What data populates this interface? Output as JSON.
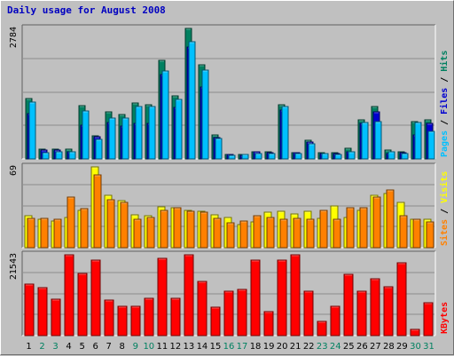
{
  "colors": {
    "background": "#c0c0c0",
    "grid": "#8c8c8c",
    "title": "#0000c0",
    "hits": "#008060",
    "files": "#0000d0",
    "pages": "#00c0ff",
    "visits": "#ffff00",
    "sites": "#ff8000",
    "kbytes": "#ff0000",
    "weekday": "#000000",
    "weekend": "#008060"
  },
  "chart_data": {
    "type": "bar",
    "title": "Daily usage for August 2008",
    "categories": [
      "1",
      "2",
      "3",
      "4",
      "5",
      "6",
      "7",
      "8",
      "9",
      "10",
      "11",
      "12",
      "13",
      "14",
      "15",
      "16",
      "17",
      "18",
      "19",
      "20",
      "21",
      "22",
      "23",
      "24",
      "25",
      "26",
      "27",
      "28",
      "29",
      "30",
      "31"
    ],
    "weekend_days": [
      "2",
      "3",
      "9",
      "10",
      "16",
      "17",
      "23",
      "24",
      "30",
      "31"
    ],
    "panels": [
      {
        "id": "hits-files-pages",
        "ymax_label": "2784",
        "ylim": [
          0,
          2784
        ],
        "legend": [
          {
            "text": "Hits",
            "color": "#008060"
          },
          {
            "text": "Files",
            "color": "#0000d0"
          },
          {
            "text": "Pages",
            "color": "#00c0ff"
          }
        ],
        "series": [
          {
            "name": "Hits",
            "values": [
              1280,
              200,
              210,
              200,
              1140,
              500,
              1000,
              940,
              1200,
              1150,
              2110,
              1350,
              2784,
              2010,
              520,
              100,
              100,
              160,
              160,
              1150,
              140,
              400,
              140,
              130,
              220,
              840,
              1110,
              180,
              160,
              800,
              830
            ]
          },
          {
            "name": "Files",
            "values": [
              960,
              190,
              180,
              160,
              720,
              480,
              780,
              700,
              760,
              750,
              1800,
              1100,
              2380,
              1530,
              460,
              90,
              70,
              150,
              130,
              1050,
              130,
              360,
              110,
              120,
              150,
              760,
              1010,
              120,
              140,
              510,
              760
            ]
          },
          {
            "name": "Pages",
            "values": [
              1220,
              140,
              160,
              150,
              1030,
              410,
              880,
              870,
              1110,
              1110,
              1870,
              1260,
              2500,
              1900,
              430,
              80,
              90,
              110,
              110,
              1120,
              120,
              330,
              110,
              100,
              160,
              770,
              790,
              160,
              120,
              770,
              580
            ]
          }
        ]
      },
      {
        "id": "visits-sites",
        "ymax_label": "69",
        "ylim": [
          0,
          69
        ],
        "legend": [
          {
            "text": "Visits",
            "color": "#ffff00"
          },
          {
            "text": "Sites",
            "color": "#ff8000"
          }
        ],
        "series": [
          {
            "name": "Visits",
            "values": [
              27,
              24,
              23,
              26,
              32,
              69,
              45,
              40,
              28,
              27,
              35,
              34,
              32,
              31,
              28,
              26,
              20,
              22,
              30,
              31,
              29,
              31,
              25,
              36,
              26,
              32,
              45,
              46,
              39,
              24,
              24
            ]
          },
          {
            "name": "Sites",
            "values": [
              25,
              25,
              24,
              43,
              33,
              62,
              41,
              39,
              24,
              26,
              32,
              34,
              31,
              30,
              25,
              21,
              23,
              27,
              26,
              24,
              25,
              24,
              32,
              24,
              34,
              34,
              43,
              49,
              27,
              24,
              22
            ]
          }
        ]
      },
      {
        "id": "kbytes",
        "ymax_label": "21543",
        "ylim": [
          0,
          21543
        ],
        "legend": [
          {
            "text": "KBytes",
            "color": "#ff0000"
          }
        ],
        "series": [
          {
            "name": "KBytes",
            "values": [
              13800,
              12700,
              9600,
              21543,
              16500,
              20200,
              9400,
              7700,
              7700,
              10000,
              20500,
              9900,
              21543,
              14500,
              7600,
              11800,
              12400,
              20100,
              6300,
              20100,
              21543,
              11800,
              3700,
              7700,
              16400,
              11800,
              15100,
              13000,
              19500,
              1700,
              8800
            ]
          }
        ]
      }
    ]
  }
}
